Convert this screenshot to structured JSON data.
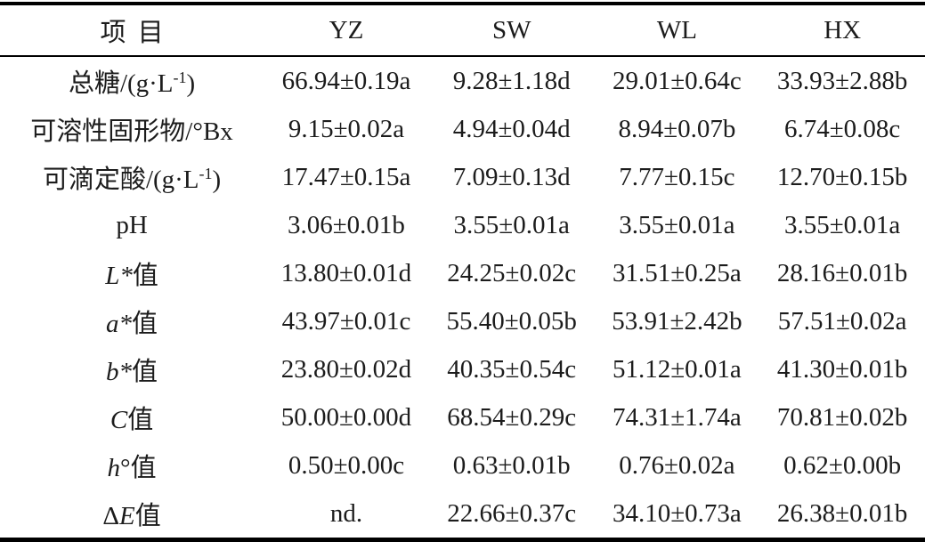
{
  "colors": {
    "text": "#1c1c1c",
    "rule": "#000000",
    "background": "#ffffff"
  },
  "table": {
    "columns": [
      "项目",
      "YZ",
      "SW",
      "WL",
      "HX"
    ],
    "rows": [
      {
        "label_segments": [
          {
            "text": "总糖/(g·L",
            "style": "normal"
          },
          {
            "text": "-1",
            "style": "sup"
          },
          {
            "text": ")",
            "style": "normal"
          }
        ],
        "values": [
          "66.94±0.19a",
          "9.28±1.18d",
          "29.01±0.64c",
          "33.93±2.88b"
        ]
      },
      {
        "label_segments": [
          {
            "text": "可溶性固形物/°Bx",
            "style": "normal"
          }
        ],
        "values": [
          "9.15±0.02a",
          "4.94±0.04d",
          "8.94±0.07b",
          "6.74±0.08c"
        ]
      },
      {
        "label_segments": [
          {
            "text": "可滴定酸/(g·L",
            "style": "normal"
          },
          {
            "text": "-1",
            "style": "sup"
          },
          {
            "text": ")",
            "style": "normal"
          }
        ],
        "values": [
          "17.47±0.15a",
          "7.09±0.13d",
          "7.77±0.15c",
          "12.70±0.15b"
        ]
      },
      {
        "label_segments": [
          {
            "text": "pH",
            "style": "normal"
          }
        ],
        "values": [
          "3.06±0.01b",
          "3.55±0.01a",
          "3.55±0.01a",
          "3.55±0.01a"
        ]
      },
      {
        "label_segments": [
          {
            "text": "L*",
            "style": "italic"
          },
          {
            "text": "值",
            "style": "normal"
          }
        ],
        "values": [
          "13.80±0.01d",
          "24.25±0.02c",
          "31.51±0.25a",
          "28.16±0.01b"
        ]
      },
      {
        "label_segments": [
          {
            "text": "a*",
            "style": "italic"
          },
          {
            "text": "值",
            "style": "normal"
          }
        ],
        "values": [
          "43.97±0.01c",
          "55.40±0.05b",
          "53.91±2.42b",
          "57.51±0.02a"
        ]
      },
      {
        "label_segments": [
          {
            "text": "b*",
            "style": "italic"
          },
          {
            "text": "值",
            "style": "normal"
          }
        ],
        "values": [
          "23.80±0.02d",
          "40.35±0.54c",
          "51.12±0.01a",
          "41.30±0.01b"
        ]
      },
      {
        "label_segments": [
          {
            "text": "C",
            "style": "italic"
          },
          {
            "text": "值",
            "style": "normal"
          }
        ],
        "values": [
          "50.00±0.00d",
          "68.54±0.29c",
          "74.31±1.74a",
          "70.81±0.02b"
        ]
      },
      {
        "label_segments": [
          {
            "text": "h",
            "style": "italic"
          },
          {
            "text": "°值",
            "style": "normal"
          }
        ],
        "values": [
          "0.50±0.00c",
          "0.63±0.01b",
          "0.76±0.02a",
          "0.62±0.00b"
        ]
      },
      {
        "label_segments": [
          {
            "text": "Δ",
            "style": "normal"
          },
          {
            "text": "E",
            "style": "italic"
          },
          {
            "text": "值",
            "style": "normal"
          }
        ],
        "values": [
          "nd.",
          "22.66±0.37c",
          "34.10±0.73a",
          "26.38±0.01b"
        ]
      }
    ]
  }
}
